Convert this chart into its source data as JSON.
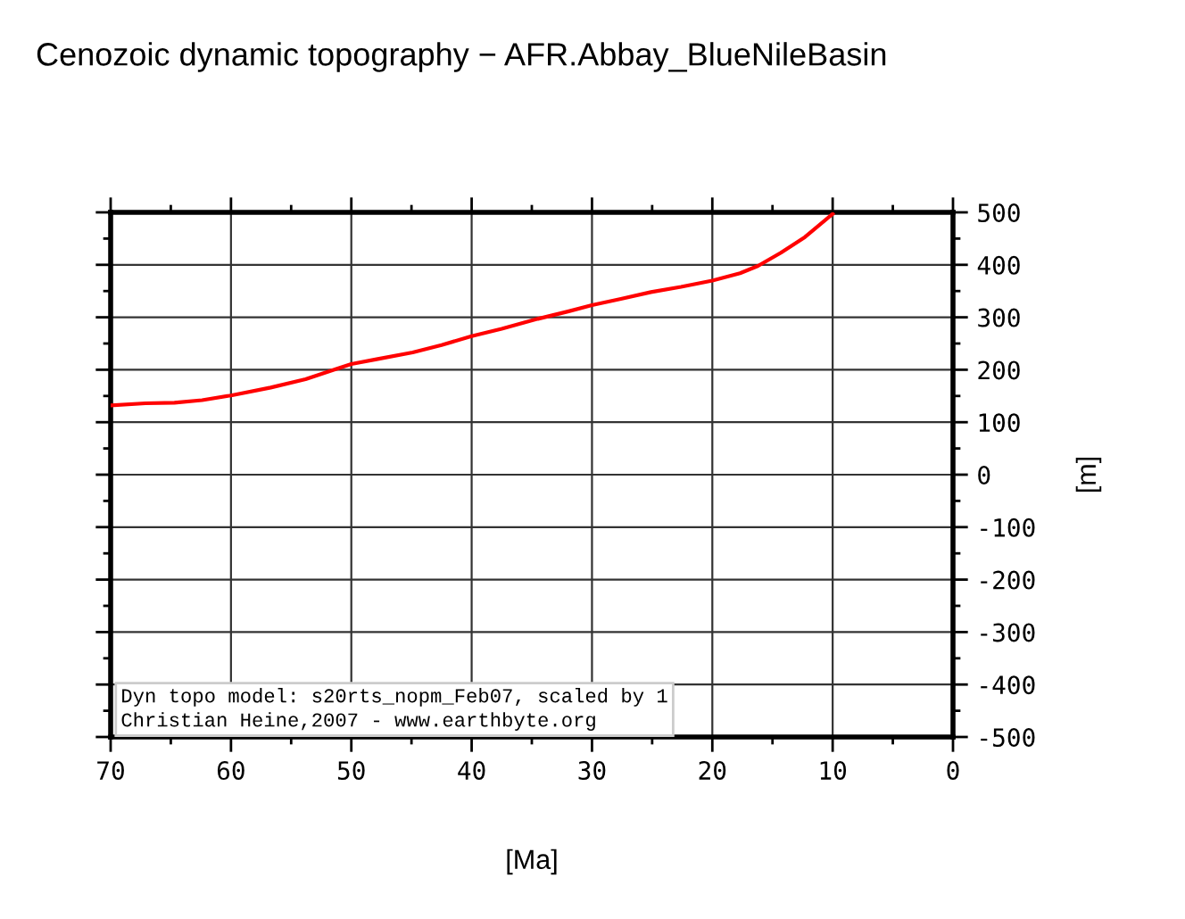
{
  "chart_data": {
    "type": "line",
    "title": "Cenozoic dynamic topography − AFR.Abbay_BlueNileBasin",
    "xlabel": "[Ma]",
    "ylabel": "[m]",
    "x": [
      70,
      67.1,
      64.7,
      62.4,
      60,
      56.7,
      53.8,
      51.3,
      50,
      47.9,
      44.9,
      42.5,
      40,
      37.5,
      34.5,
      32,
      30,
      27.6,
      25.1,
      22.6,
      20,
      17.7,
      16.2,
      14.3,
      12.3,
      10
    ],
    "series": [
      {
        "color": "#ff0000",
        "values": [
          132,
          136,
          137,
          142,
          151,
          166,
          182,
          201,
          211,
          220,
          233,
          247,
          264,
          278,
          297,
          311,
          323,
          335,
          348,
          358,
          370,
          384,
          398,
          423,
          453,
          497
        ]
      }
    ],
    "xlim": [
      70,
      0
    ],
    "xticks": [
      70,
      60,
      50,
      40,
      30,
      20,
      10,
      0
    ],
    "ylim": [
      -500,
      500
    ],
    "yticks": [
      -500,
      -400,
      -300,
      -200,
      -100,
      0,
      100,
      200,
      300,
      400,
      500
    ],
    "grid": true,
    "legend": false,
    "marker": "none",
    "line_style": "solid",
    "annotations": [
      "Dyn topo model: s20rts_nopm_Feb07, scaled by 1",
      "Christian Heine,2007 - www.earthbyte.org"
    ]
  }
}
